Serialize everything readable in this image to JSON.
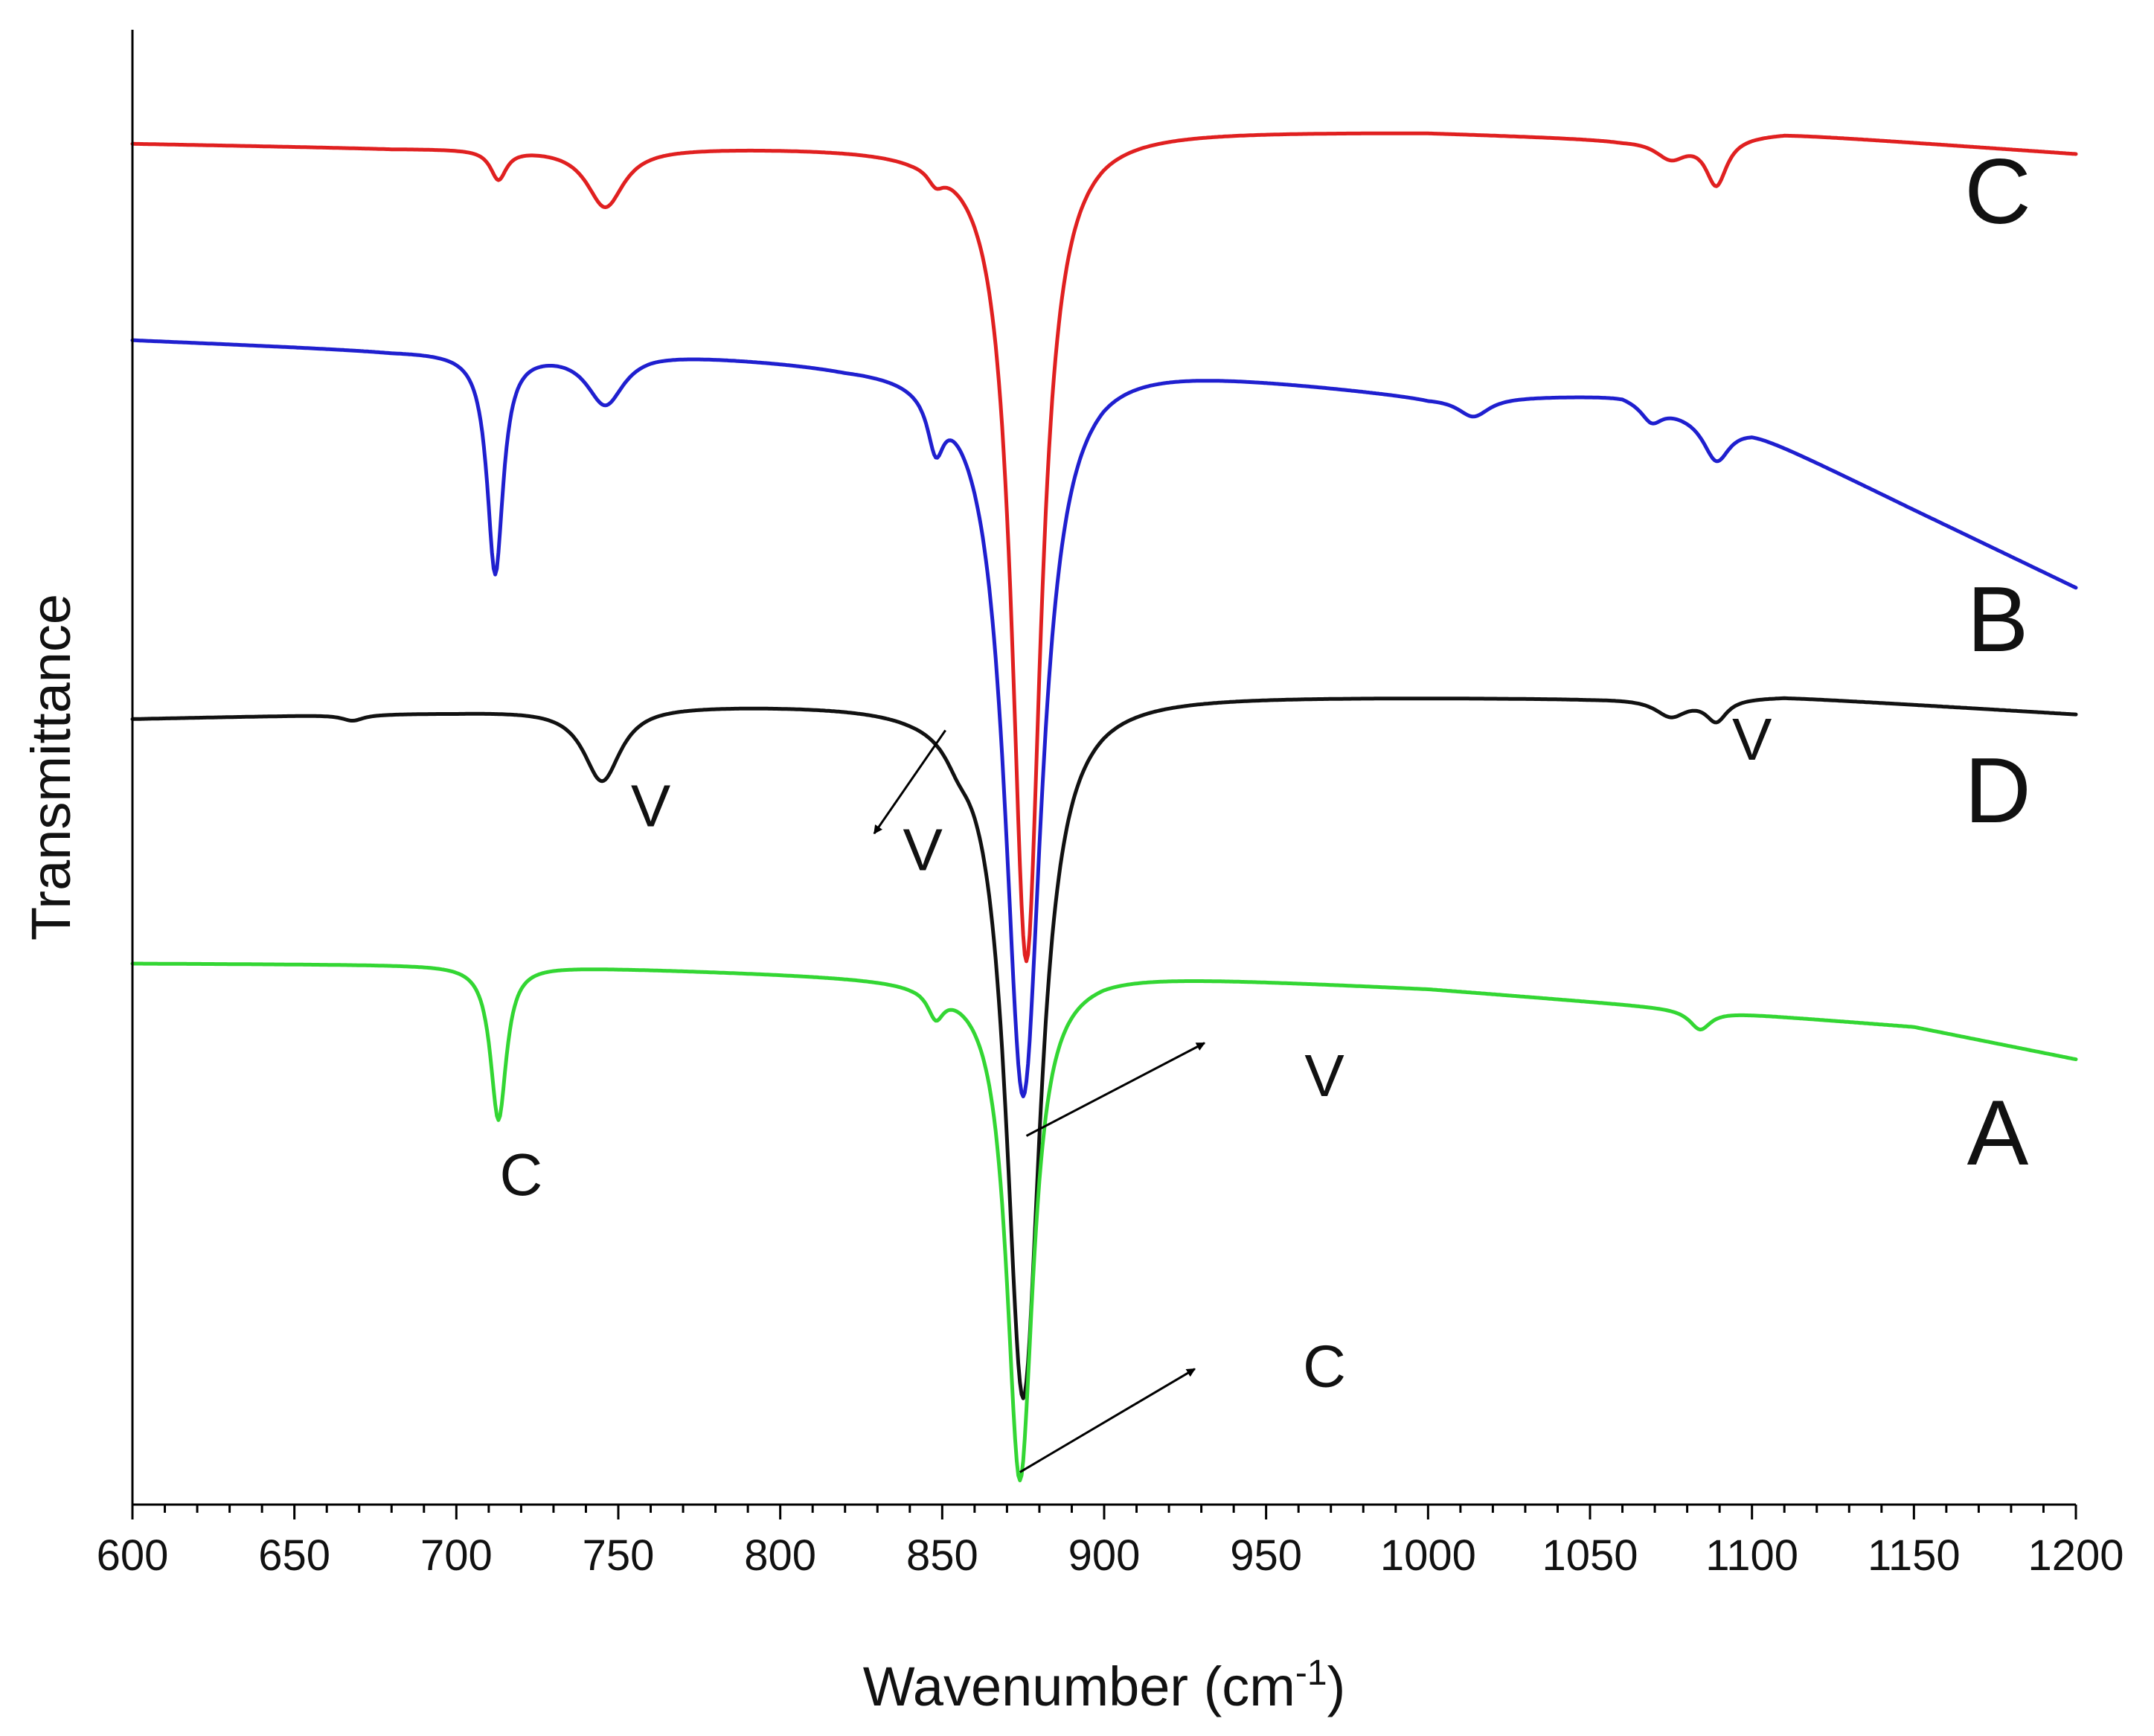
{
  "chart_data": {
    "type": "line",
    "title": "",
    "xlabel": "Wavenumber (cm",
    "xlabel_superscript": "-1",
    "xlabel_close": ")",
    "ylabel": "Transmittance",
    "xlim": [
      600,
      1200
    ],
    "ylim": [
      0,
      100
    ],
    "x_ticks": [
      "600",
      "650",
      "700",
      "750",
      "800",
      "850",
      "900",
      "950",
      "1000",
      "1050",
      "1100",
      "1150",
      "1200"
    ],
    "y_ticks_shown": false,
    "grid": false,
    "series": [
      {
        "name": "C",
        "color": "#e02020",
        "baseline": [
          [
            600,
            92.3
          ],
          [
            680,
            92.0
          ],
          [
            840,
            92.2
          ],
          [
            900,
            93.3
          ],
          [
            1000,
            93.1
          ],
          [
            1060,
            92.6
          ],
          [
            1110,
            93.0
          ],
          [
            1200,
            91.6
          ]
        ],
        "bands": [
          {
            "center": 713,
            "depth": 2.0,
            "width": 3
          },
          {
            "center": 746,
            "depth": 4.0,
            "width": 7
          },
          {
            "center": 848,
            "depth": 1.0,
            "width": 3
          },
          {
            "center": 876,
            "depth": 56.0,
            "width": 5.5
          },
          {
            "center": 1075,
            "depth": 1.3,
            "width": 6
          },
          {
            "center": 1089,
            "depth": 3.2,
            "width": 4
          }
        ]
      },
      {
        "name": "B",
        "color": "#1f1fcf",
        "baseline": [
          [
            600,
            79.0
          ],
          [
            680,
            78.3
          ],
          [
            760,
            78.3
          ],
          [
            820,
            77.6
          ],
          [
            900,
            77.8
          ],
          [
            1000,
            75.2
          ],
          [
            1060,
            75.3
          ],
          [
            1100,
            72.9
          ],
          [
            1150,
            67.5
          ],
          [
            1200,
            62.2
          ]
        ],
        "bands": [
          {
            "center": 712,
            "depth": 15.0,
            "width": 3
          },
          {
            "center": 746,
            "depth": 3.5,
            "width": 7
          },
          {
            "center": 848,
            "depth": 3.5,
            "width": 3
          },
          {
            "center": 875,
            "depth": 50.0,
            "width": 7
          },
          {
            "center": 1014,
            "depth": 1.3,
            "width": 6
          },
          {
            "center": 1069,
            "depth": 1.2,
            "width": 4
          },
          {
            "center": 1089,
            "depth": 2.7,
            "width": 5
          }
        ]
      },
      {
        "name": "D",
        "color": "#111111",
        "baseline": [
          [
            600,
            53.3
          ],
          [
            700,
            53.8
          ],
          [
            760,
            54.3
          ],
          [
            840,
            54.5
          ],
          [
            900,
            55.0
          ],
          [
            1050,
            54.7
          ],
          [
            1110,
            54.8
          ],
          [
            1200,
            53.6
          ]
        ],
        "bands": [
          {
            "center": 668,
            "depth": 0.4,
            "width": 4
          },
          {
            "center": 745,
            "depth": 5.0,
            "width": 7
          },
          {
            "center": 855,
            "depth": 1.2,
            "width": 5
          },
          {
            "center": 875,
            "depth": 47.5,
            "width": 6.5
          },
          {
            "center": 1075,
            "depth": 1.2,
            "width": 6
          },
          {
            "center": 1089,
            "depth": 1.5,
            "width": 4
          }
        ]
      },
      {
        "name": "A",
        "color": "#33d633",
        "baseline": [
          [
            600,
            36.7
          ],
          [
            720,
            36.6
          ],
          [
            780,
            36.2
          ],
          [
            840,
            35.8
          ],
          [
            900,
            36.1
          ],
          [
            1000,
            35.0
          ],
          [
            1080,
            33.6
          ],
          [
            1150,
            32.4
          ],
          [
            1200,
            30.2
          ]
        ],
        "bands": [
          {
            "center": 713,
            "depth": 10.5,
            "width": 3
          },
          {
            "center": 848,
            "depth": 1.8,
            "width": 3
          },
          {
            "center": 874,
            "depth": 34.3,
            "width": 5
          },
          {
            "center": 1084,
            "depth": 1.3,
            "width": 4
          }
        ]
      }
    ],
    "annotations": [
      {
        "text": "C",
        "x": 720,
        "y": 21.0
      },
      {
        "text": "V",
        "x": 760,
        "y": 46.0
      },
      {
        "text": "V",
        "x": 844,
        "y": 43.0
      },
      {
        "text": "V",
        "x": 1100,
        "y": 50.5
      },
      {
        "text": "V",
        "x": 968,
        "y": 27.7
      },
      {
        "text": "C",
        "x": 968,
        "y": 8.0
      }
    ],
    "arrows": [
      {
        "from": [
          851,
          52.5
        ],
        "to": [
          829,
          45.5
        ]
      },
      {
        "from": [
          876,
          25.0
        ],
        "to": [
          931,
          31.3
        ]
      },
      {
        "from": [
          874,
          2.2
        ],
        "to": [
          928,
          9.2
        ]
      }
    ],
    "curve_labels": [
      "C",
      "B",
      "D",
      "A"
    ]
  }
}
